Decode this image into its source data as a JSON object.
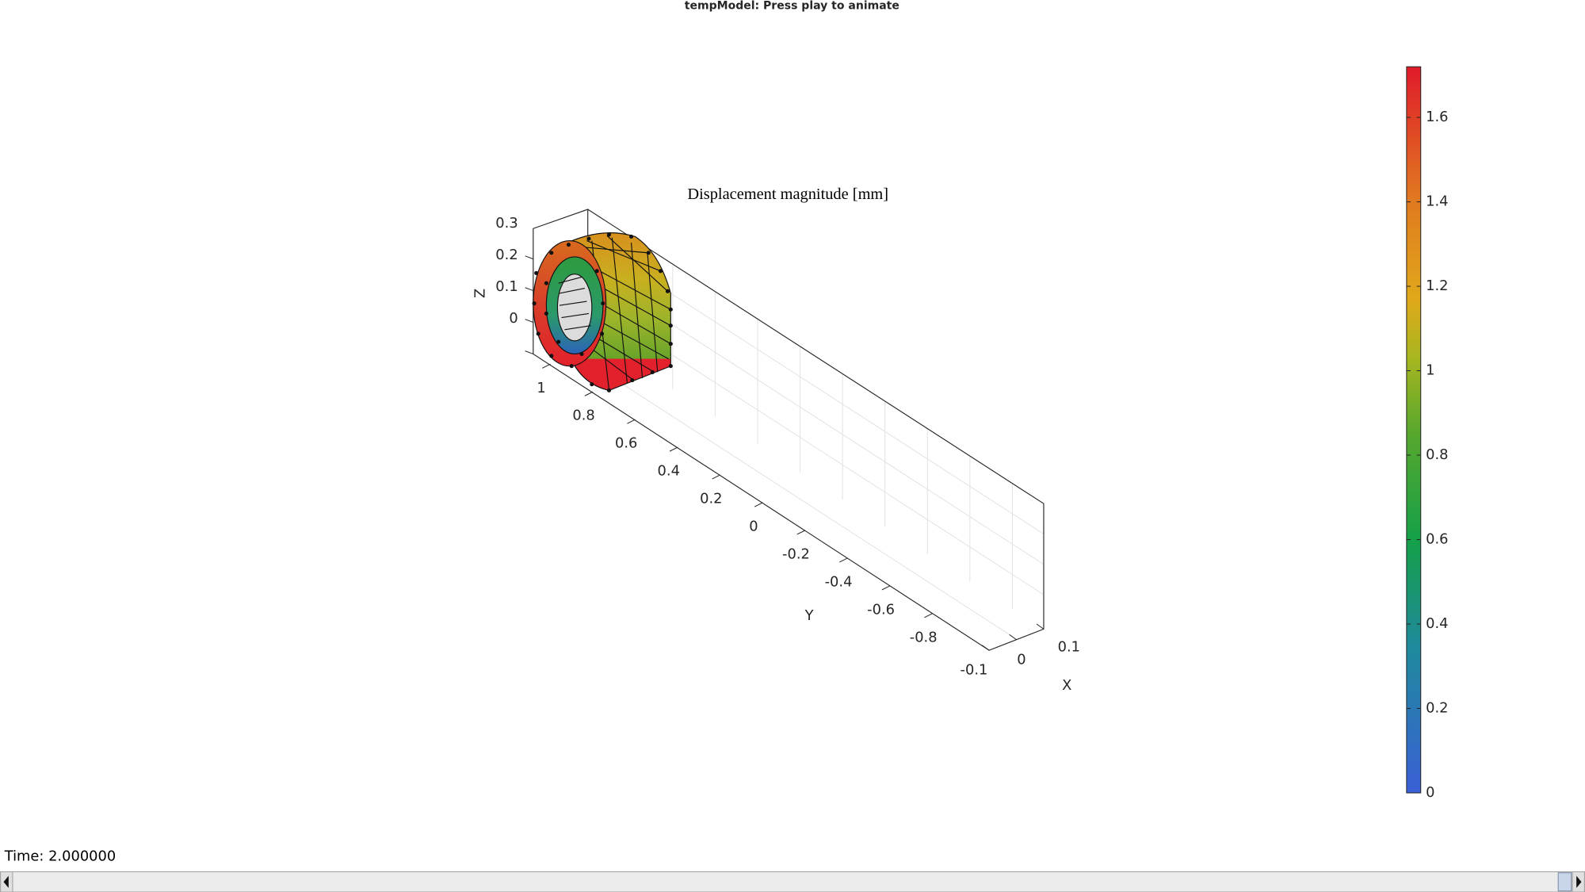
{
  "window": {
    "title": "tempModel: Press play to animate"
  },
  "plot": {
    "title": "Displacement magnitude [mm]",
    "x_label": "X",
    "y_label": "Y",
    "z_label": "Z",
    "x_ticks": [
      -0.1,
      0,
      0.1
    ],
    "y_ticks": [
      -0.8,
      -0.6,
      -0.4,
      -0.2,
      0,
      0.2,
      0.4,
      0.6,
      0.8,
      1
    ],
    "z_ticks": [
      0,
      0.1,
      0.2,
      0.3
    ]
  },
  "colorbar": {
    "lim": [
      0,
      1.72
    ],
    "ticks": [
      0,
      0.2,
      0.4,
      0.6,
      0.8,
      1,
      1.2,
      1.4,
      1.6
    ]
  },
  "status": {
    "time": "Time: 2.000000"
  }
}
